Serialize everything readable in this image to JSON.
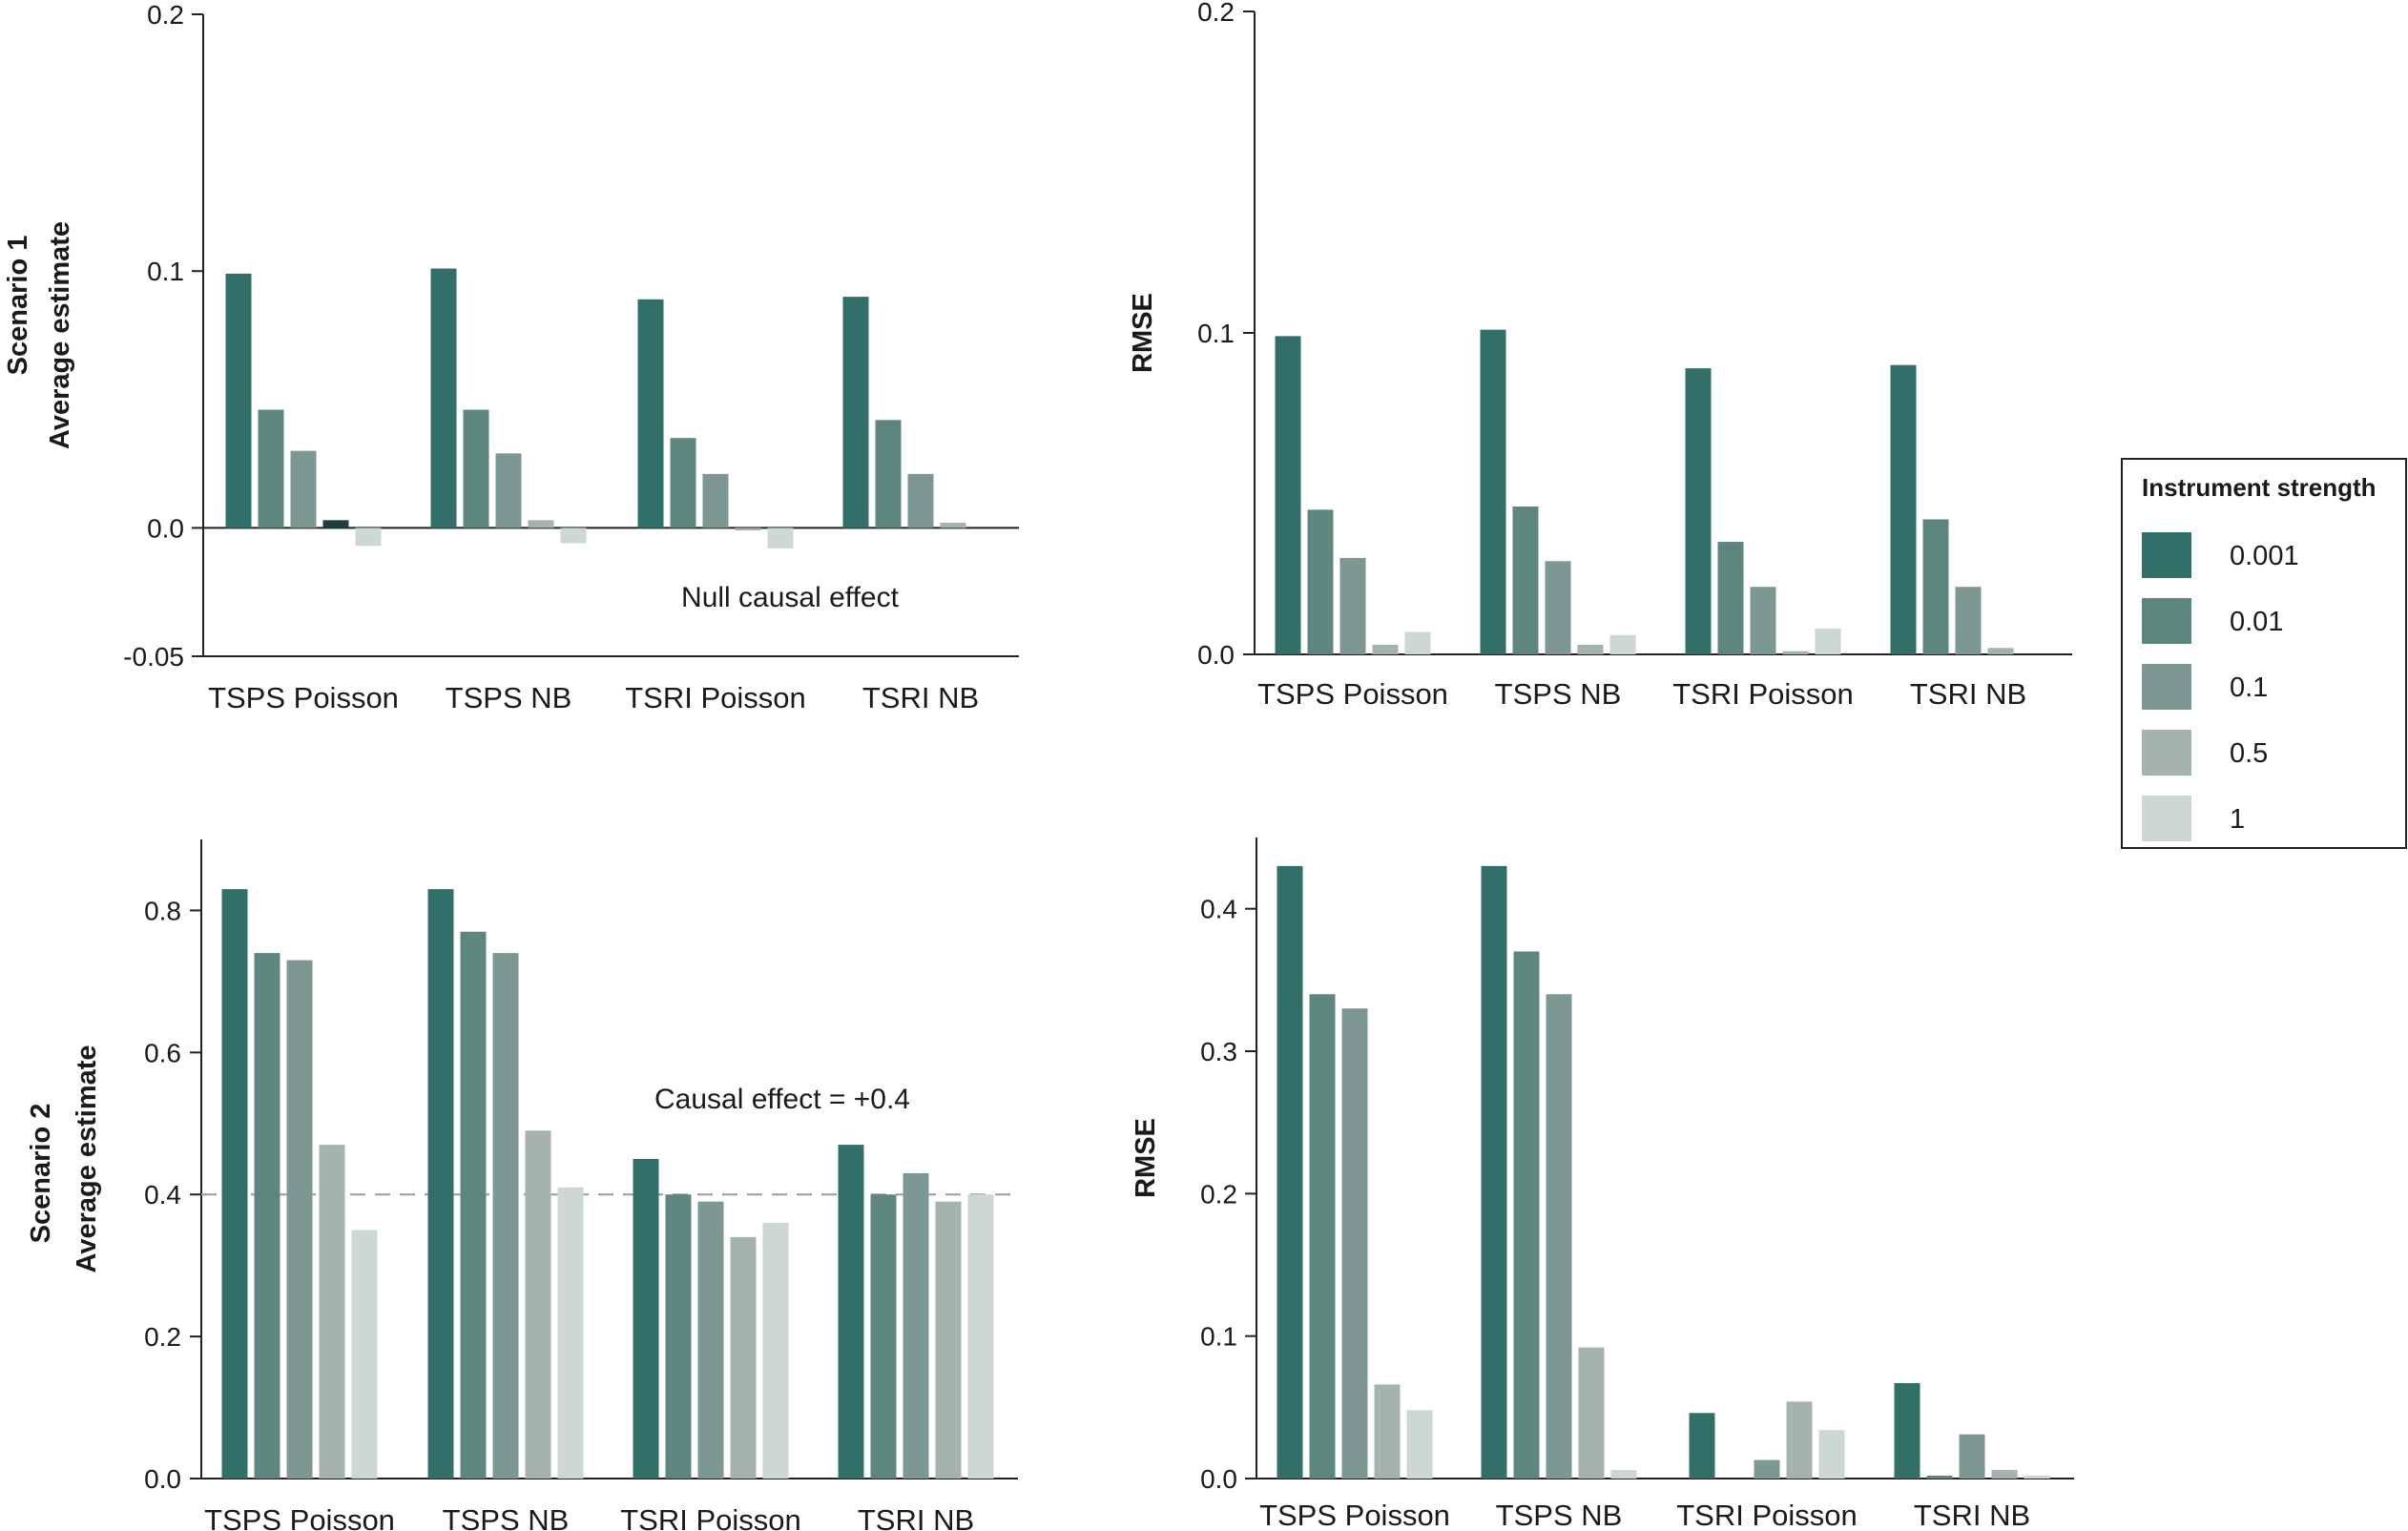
{
  "legend": {
    "title": "Instrument strength",
    "items": [
      {
        "label": "0.001",
        "color": "#336f69"
      },
      {
        "label": "0.01",
        "color": "#5d867f"
      },
      {
        "label": "0.1",
        "color": "#7d9793"
      },
      {
        "label": "0.5",
        "color": "#a4b3b0"
      },
      {
        "label": "1",
        "color": "#cdd7d5"
      }
    ]
  },
  "chart_data": [
    {
      "type": "bar",
      "row_label": "Scenario 1",
      "ylabel": "Average estimate",
      "annotation": "Null causal effect",
      "categories": [
        "TSPS Poisson",
        "TSPS NB",
        "TSRI Poisson",
        "TSRI NB"
      ],
      "ylim": [
        -0.05,
        0.2
      ],
      "yticks": [
        -0.05,
        0.0,
        0.1,
        0.2
      ],
      "ytick_labels": [
        "-0.05",
        "0.0",
        "0.1",
        "0.2"
      ],
      "series": [
        {
          "name": "0.001",
          "values": [
            0.099,
            0.101,
            0.089,
            0.09
          ]
        },
        {
          "name": "0.01",
          "values": [
            0.046,
            0.046,
            0.035,
            0.042
          ]
        },
        {
          "name": "0.1",
          "values": [
            0.03,
            0.029,
            0.021,
            0.021
          ]
        },
        {
          "name": "0.5",
          "values": [
            0.003,
            0.003,
            -0.001,
            0.002
          ]
        },
        {
          "name": "1",
          "values": [
            -0.007,
            -0.006,
            -0.008,
            0.0
          ]
        }
      ]
    },
    {
      "type": "bar",
      "row_label": "",
      "ylabel": "RMSE",
      "categories": [
        "TSPS Poisson",
        "TSPS NB",
        "TSRI Poisson",
        "TSRI NB"
      ],
      "ylim": [
        0.0,
        0.2
      ],
      "yticks": [
        0.0,
        0.1,
        0.2
      ],
      "ytick_labels": [
        "0.0",
        "0.1",
        "0.2"
      ],
      "series": [
        {
          "name": "0.001",
          "values": [
            0.099,
            0.101,
            0.089,
            0.09
          ]
        },
        {
          "name": "0.01",
          "values": [
            0.045,
            0.046,
            0.035,
            0.042
          ]
        },
        {
          "name": "0.1",
          "values": [
            0.03,
            0.029,
            0.021,
            0.021
          ]
        },
        {
          "name": "0.5",
          "values": [
            0.003,
            0.003,
            0.001,
            0.002
          ]
        },
        {
          "name": "1",
          "values": [
            0.007,
            0.006,
            0.008,
            0.0
          ]
        }
      ]
    },
    {
      "type": "bar",
      "row_label": "Scenario 2",
      "ylabel": "Average estimate",
      "annotation": "Causal effect = +0.4",
      "reference_line": 0.4,
      "categories": [
        "TSPS Poisson",
        "TSPS NB",
        "TSRI Poisson",
        "TSRI NB"
      ],
      "ylim": [
        0.0,
        0.9
      ],
      "yticks": [
        0.0,
        0.2,
        0.4,
        0.6,
        0.8
      ],
      "ytick_labels": [
        "0.0",
        "0.2",
        "0.4",
        "0.6",
        "0.8"
      ],
      "series": [
        {
          "name": "0.001",
          "values": [
            0.83,
            0.83,
            0.45,
            0.47
          ]
        },
        {
          "name": "0.01",
          "values": [
            0.74,
            0.77,
            0.4,
            0.4
          ]
        },
        {
          "name": "0.1",
          "values": [
            0.73,
            0.74,
            0.39,
            0.43
          ]
        },
        {
          "name": "0.5",
          "values": [
            0.47,
            0.49,
            0.34,
            0.39
          ]
        },
        {
          "name": "1",
          "values": [
            0.35,
            0.41,
            0.36,
            0.4
          ]
        }
      ]
    },
    {
      "type": "bar",
      "row_label": "",
      "ylabel": "RMSE",
      "categories": [
        "TSPS Poisson",
        "TSPS NB",
        "TSRI Poisson",
        "TSRI NB"
      ],
      "ylim": [
        0.0,
        0.45
      ],
      "yticks": [
        0.0,
        0.1,
        0.2,
        0.3,
        0.4
      ],
      "ytick_labels": [
        "0.0",
        "0.1",
        "0.2",
        "0.3",
        "0.4"
      ],
      "series": [
        {
          "name": "0.001",
          "values": [
            0.43,
            0.43,
            0.046,
            0.067
          ]
        },
        {
          "name": "0.01",
          "values": [
            0.34,
            0.37,
            0.0,
            0.002
          ]
        },
        {
          "name": "0.1",
          "values": [
            0.33,
            0.34,
            0.013,
            0.031
          ]
        },
        {
          "name": "0.5",
          "values": [
            0.066,
            0.092,
            0.054,
            0.006
          ]
        },
        {
          "name": "1",
          "values": [
            0.048,
            0.006,
            0.034,
            0.002
          ]
        }
      ]
    }
  ]
}
